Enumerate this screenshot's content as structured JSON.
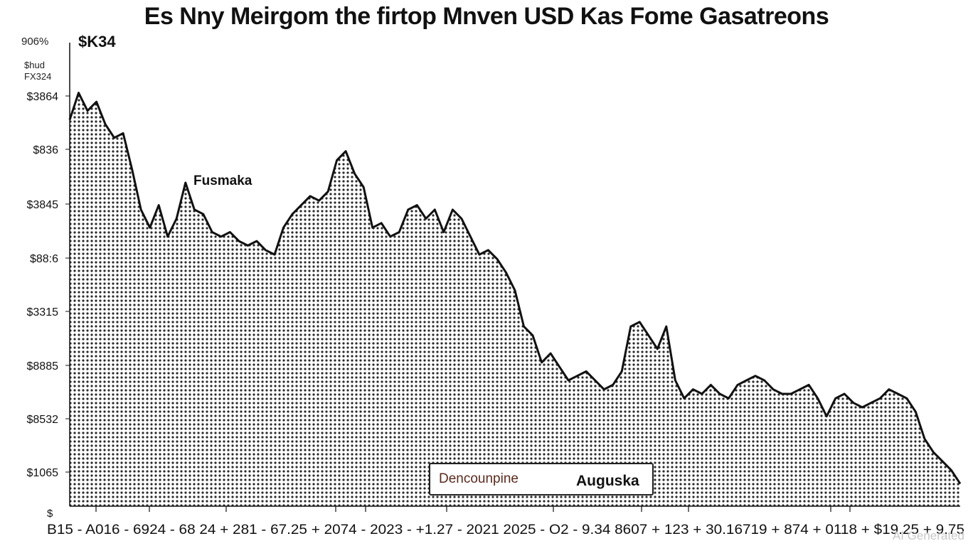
{
  "chart_data": {
    "type": "area",
    "title": "Es Nny Meirgom the firtop Mnven USD Kas Fome Gasatreons",
    "price_label": "$K34",
    "corner_label": "906%",
    "stacked_labels": [
      "$hud",
      "FX324"
    ],
    "y_ticks": [
      "$3864",
      "$836",
      "$3845",
      "$88:6",
      "$3315",
      "$8885",
      "$8532",
      "$1065"
    ],
    "y_bottom_label": "$",
    "x_label_text": "B15 - A016 - 6924 - 68 24 + 281 - 67.25 + 2074 - 2023 - +1.27 - 2021 2025 - O2 - 9.34 8607 + 123 + 30.16719 + 874 + 0118 + $19.25 + 9.75",
    "annotation": "Fusmaka",
    "legend": {
      "item_a": "Dencounpine",
      "item_b": "Auguska"
    },
    "watermark": "AI Generated",
    "colors": {
      "line": "#111111",
      "fill_dots": "#2a2a2a",
      "background": "#ffffff"
    },
    "x_range": [
      0,
      100
    ],
    "y_range": [
      0,
      100
    ],
    "series": [
      {
        "x": [
          0,
          1,
          2,
          3,
          4,
          5,
          6,
          7,
          8,
          9,
          10,
          11,
          12,
          13,
          14,
          15,
          16,
          17,
          18,
          19,
          20,
          21,
          22,
          23,
          24,
          25,
          26,
          27,
          28,
          29,
          30,
          31,
          32,
          33,
          34,
          35,
          36,
          37,
          38,
          39,
          40,
          41,
          42,
          43,
          44,
          45,
          46,
          47,
          48,
          49,
          50,
          51,
          52,
          53,
          54,
          55,
          56,
          57,
          58,
          59,
          60,
          61,
          62,
          63,
          64,
          65,
          66,
          67,
          68,
          69,
          70,
          71,
          72,
          73,
          74,
          75,
          76,
          77,
          78,
          79,
          80,
          81,
          82,
          83,
          84,
          85,
          86,
          87,
          88,
          89,
          90,
          91,
          92,
          93,
          94,
          95,
          96,
          97,
          98,
          99,
          100
        ],
        "values": [
          86,
          92,
          88,
          90,
          85,
          82,
          83,
          75,
          66,
          62,
          67,
          60,
          64,
          72,
          66,
          65,
          61,
          60,
          61,
          59,
          58,
          59,
          57,
          56,
          62,
          65,
          67,
          69,
          68,
          70,
          77,
          79,
          74,
          71,
          62,
          63,
          60,
          61,
          66,
          67,
          64,
          66,
          61,
          66,
          64,
          60,
          56,
          57,
          55,
          52,
          48,
          40,
          38,
          32,
          34,
          31,
          28,
          29,
          30,
          28,
          26,
          27,
          30,
          40,
          41,
          38,
          35,
          40,
          28,
          24,
          26,
          25,
          27,
          25,
          24,
          27,
          28,
          29,
          28,
          26,
          25,
          25,
          26,
          27,
          24,
          20,
          24,
          25,
          23,
          22,
          23,
          24,
          26,
          25,
          24,
          21,
          15,
          12,
          10,
          8,
          5
        ]
      }
    ]
  }
}
